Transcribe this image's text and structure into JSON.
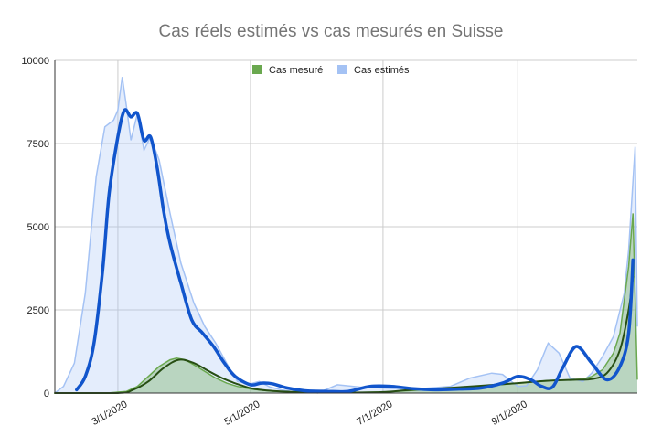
{
  "chart_data": {
    "type": "area",
    "title": "Cas réels estimés vs cas mesurés en Suisse",
    "xlabel": "",
    "ylabel": "",
    "x_ticks": [
      "3/1/2020",
      "5/1/2020",
      "7/1/2020",
      "9/1/2020"
    ],
    "y_ticks": [
      "0",
      "2500",
      "5000",
      "7500",
      "10000"
    ],
    "ylim": [
      0,
      10000
    ],
    "xlim": [
      "2020-02-01",
      "2020-10-26"
    ],
    "grid": "vertical and horizontal",
    "legend_position": "top-center",
    "series": [
      {
        "name": "Cas mesuré",
        "color": "#6aa84f",
        "trend_color": "#274e13",
        "x": [
          "2020-02-01",
          "2020-02-25",
          "2020-03-05",
          "2020-03-10",
          "2020-03-15",
          "2020-03-20",
          "2020-03-25",
          "2020-03-28",
          "2020-04-01",
          "2020-04-05",
          "2020-04-10",
          "2020-04-15",
          "2020-04-20",
          "2020-04-25",
          "2020-05-01",
          "2020-05-10",
          "2020-05-20",
          "2020-06-01",
          "2020-06-15",
          "2020-07-01",
          "2020-07-15",
          "2020-08-01",
          "2020-08-15",
          "2020-09-01",
          "2020-09-15",
          "2020-09-25",
          "2020-10-01",
          "2020-10-05",
          "2020-10-10",
          "2020-10-15",
          "2020-10-18",
          "2020-10-20",
          "2020-10-22",
          "2020-10-24",
          "2020-10-26"
        ],
        "values": [
          0,
          0,
          50,
          200,
          500,
          800,
          1000,
          1050,
          1000,
          850,
          650,
          450,
          300,
          200,
          120,
          60,
          30,
          20,
          15,
          30,
          80,
          150,
          200,
          300,
          380,
          400,
          420,
          500,
          700,
          1200,
          1800,
          2800,
          3800,
          5400,
          400
        ]
      },
      {
        "name": "Cas estimés",
        "color": "#a4c2f4",
        "trend_color": "#1155cc",
        "x": [
          "2020-02-01",
          "2020-02-05",
          "2020-02-10",
          "2020-02-15",
          "2020-02-20",
          "2020-02-24",
          "2020-02-28",
          "2020-03-01",
          "2020-03-03",
          "2020-03-05",
          "2020-03-07",
          "2020-03-10",
          "2020-03-13",
          "2020-03-16",
          "2020-03-20",
          "2020-03-25",
          "2020-03-30",
          "2020-04-05",
          "2020-04-10",
          "2020-04-15",
          "2020-04-20",
          "2020-04-25",
          "2020-05-01",
          "2020-05-05",
          "2020-05-10",
          "2020-05-15",
          "2020-05-20",
          "2020-05-25",
          "2020-06-01",
          "2020-06-10",
          "2020-06-20",
          "2020-07-01",
          "2020-07-10",
          "2020-07-20",
          "2020-08-01",
          "2020-08-10",
          "2020-08-20",
          "2020-08-25",
          "2020-09-01",
          "2020-09-05",
          "2020-09-10",
          "2020-09-15",
          "2020-09-20",
          "2020-09-25",
          "2020-10-01",
          "2020-10-05",
          "2020-10-10",
          "2020-10-15",
          "2020-10-20",
          "2020-10-22",
          "2020-10-25",
          "2020-10-26"
        ],
        "values": [
          0,
          200,
          900,
          3000,
          6500,
          8000,
          8200,
          8500,
          9500,
          8600,
          7600,
          8400,
          7300,
          7700,
          7000,
          5400,
          3900,
          2700,
          2000,
          1500,
          900,
          350,
          280,
          350,
          180,
          100,
          50,
          70,
          0,
          250,
          180,
          150,
          120,
          140,
          200,
          450,
          600,
          560,
          200,
          220,
          700,
          1500,
          1200,
          450,
          350,
          600,
          1100,
          1700,
          3000,
          4300,
          7400,
          2000
        ]
      }
    ],
    "trend_lines": [
      {
        "series": "Cas mesuré",
        "x": [
          "2020-02-01",
          "2020-03-01",
          "2020-03-08",
          "2020-03-15",
          "2020-03-22",
          "2020-03-29",
          "2020-04-05",
          "2020-04-12",
          "2020-04-19",
          "2020-04-26",
          "2020-05-03",
          "2020-05-15",
          "2020-06-01",
          "2020-06-15",
          "2020-07-01",
          "2020-07-15",
          "2020-08-01",
          "2020-08-15",
          "2020-09-01",
          "2020-09-15",
          "2020-09-28",
          "2020-10-05",
          "2020-10-12",
          "2020-10-18",
          "2020-10-22",
          "2020-10-24"
        ],
        "values": [
          0,
          0,
          100,
          350,
          750,
          1000,
          900,
          650,
          420,
          250,
          120,
          50,
          20,
          15,
          30,
          100,
          160,
          220,
          300,
          370,
          400,
          420,
          600,
          1300,
          2500,
          3500
        ]
      },
      {
        "series": "Cas estimés",
        "x": [
          "2020-02-11",
          "2020-02-15",
          "2020-02-19",
          "2020-02-23",
          "2020-02-26",
          "2020-03-01",
          "2020-03-04",
          "2020-03-07",
          "2020-03-10",
          "2020-03-13",
          "2020-03-16",
          "2020-03-19",
          "2020-03-22",
          "2020-03-25",
          "2020-03-30",
          "2020-04-04",
          "2020-04-09",
          "2020-04-14",
          "2020-04-19",
          "2020-04-24",
          "2020-05-01",
          "2020-05-06",
          "2020-05-11",
          "2020-05-18",
          "2020-05-26",
          "2020-06-05",
          "2020-06-15",
          "2020-06-25",
          "2020-07-05",
          "2020-07-15",
          "2020-07-25",
          "2020-08-05",
          "2020-08-15",
          "2020-08-25",
          "2020-09-01",
          "2020-09-07",
          "2020-09-12",
          "2020-09-17",
          "2020-09-22",
          "2020-09-28",
          "2020-10-05",
          "2020-10-12",
          "2020-10-18",
          "2020-10-22",
          "2020-10-24"
        ],
        "values": [
          100,
          500,
          1500,
          3700,
          6000,
          7700,
          8500,
          8300,
          8400,
          7600,
          7700,
          6800,
          5500,
          4500,
          3300,
          2200,
          1800,
          1400,
          900,
          500,
          250,
          300,
          280,
          150,
          70,
          50,
          50,
          200,
          200,
          130,
          100,
          120,
          150,
          300,
          500,
          400,
          200,
          180,
          800,
          1400,
          900,
          400,
          800,
          1800,
          4000
        ]
      }
    ]
  }
}
